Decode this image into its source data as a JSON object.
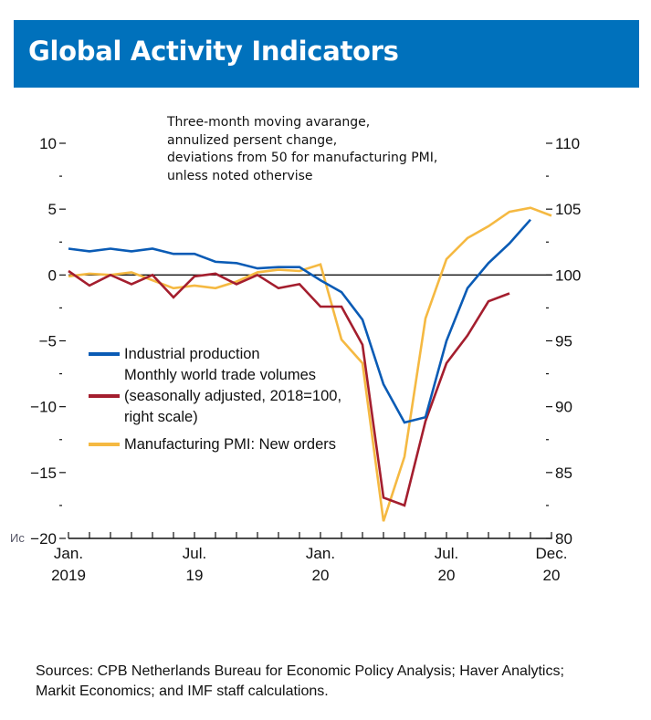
{
  "title": "Global Activity Indicators",
  "note_lines": [
    "Three-month moving avarange,",
    "annulized persent change,",
    "deviations from 50 for manufacturing PMI,",
    "unless noted othervise"
  ],
  "stray_label": "Ис",
  "sources_lines": [
    "Sources: CPB Netherlands Bureau for Economic Policy Analysis; Haver Analytics;",
    "Markit Economics; and IMF staff calculations."
  ],
  "colors": {
    "title_bg": "#0071bc",
    "industrial": "#0a5bb5",
    "trade": "#a41e2e",
    "pmi": "#f5b942"
  },
  "chart_data": {
    "type": "line",
    "title": "Global Activity Indicators",
    "x_months": [
      "2019-01",
      "2019-02",
      "2019-03",
      "2019-04",
      "2019-05",
      "2019-06",
      "2019-07",
      "2019-08",
      "2019-09",
      "2019-10",
      "2019-11",
      "2019-12",
      "2020-01",
      "2020-02",
      "2020-03",
      "2020-04",
      "2020-05",
      "2020-06",
      "2020-07",
      "2020-08",
      "2020-09",
      "2020-10",
      "2020-11",
      "2020-12"
    ],
    "x_tick_labels": [
      {
        "index": 0,
        "line1": "Jan.",
        "line2": "2019"
      },
      {
        "index": 6,
        "line1": "Jul.",
        "line2": "19"
      },
      {
        "index": 12,
        "line1": "Jan.",
        "line2": "20"
      },
      {
        "index": 18,
        "line1": "Jul.",
        "line2": "20"
      },
      {
        "index": 23,
        "line1": "Dec.",
        "line2": "20"
      }
    ],
    "left_axis": {
      "ylim": [
        -20,
        10
      ],
      "major_ticks": [
        10,
        5,
        0,
        -5,
        -10,
        -15,
        -20
      ],
      "tick_labels": [
        "10",
        "5",
        "0",
        "−5",
        "−10",
        "−15",
        "−20"
      ],
      "minor_ticks": [
        7.5,
        2.5,
        -2.5,
        -7.5,
        -12.5,
        -17.5
      ]
    },
    "right_axis": {
      "ylim": [
        80,
        110
      ],
      "major_ticks": [
        110,
        105,
        100,
        95,
        90,
        85,
        80
      ],
      "tick_labels": [
        "110",
        "105",
        "100",
        "95",
        "90",
        "85",
        "80"
      ],
      "minor_ticks": [
        107.5,
        102.5,
        97.5,
        92.5,
        87.5,
        82.5
      ]
    },
    "zero_line": 0,
    "legend_placement": "center-left",
    "series": [
      {
        "key": "industrial",
        "name": "Industrial production",
        "legend_lines": [
          "Industrial production"
        ],
        "axis": "left",
        "values": [
          2.0,
          1.8,
          2.0,
          1.8,
          2.0,
          1.6,
          1.6,
          1.0,
          0.9,
          0.5,
          0.6,
          0.6,
          -0.4,
          -1.3,
          -3.4,
          -8.3,
          -11.2,
          -10.8,
          -5.0,
          -1.0,
          0.9,
          2.4,
          4.2,
          null
        ]
      },
      {
        "key": "trade",
        "name": "Monthly world trade volumes (seasonally adjusted, 2018=100, right scale)",
        "legend_lines": [
          "Monthly world trade volumes",
          "(seasonally adjusted, 2018=100,",
          "right scale)"
        ],
        "axis": "right",
        "values": [
          100.3,
          99.2,
          100.0,
          99.3,
          100.0,
          98.3,
          99.9,
          100.1,
          99.3,
          100.0,
          99.0,
          99.3,
          97.6,
          97.6,
          94.7,
          83.1,
          82.5,
          88.9,
          93.3,
          95.4,
          98.0,
          98.6,
          null,
          null
        ]
      },
      {
        "key": "pmi",
        "name": "Manufacturing PMI: New orders",
        "legend_lines": [
          "Manufacturing PMI: New orders"
        ],
        "axis": "left",
        "values": [
          -0.1,
          0.1,
          0.0,
          0.2,
          -0.4,
          -1.0,
          -0.8,
          -1.0,
          -0.5,
          0.2,
          0.4,
          0.3,
          0.8,
          -4.9,
          -6.7,
          -18.7,
          -13.8,
          -3.3,
          1.2,
          2.8,
          3.7,
          4.8,
          5.1,
          4.5
        ]
      }
    ]
  }
}
